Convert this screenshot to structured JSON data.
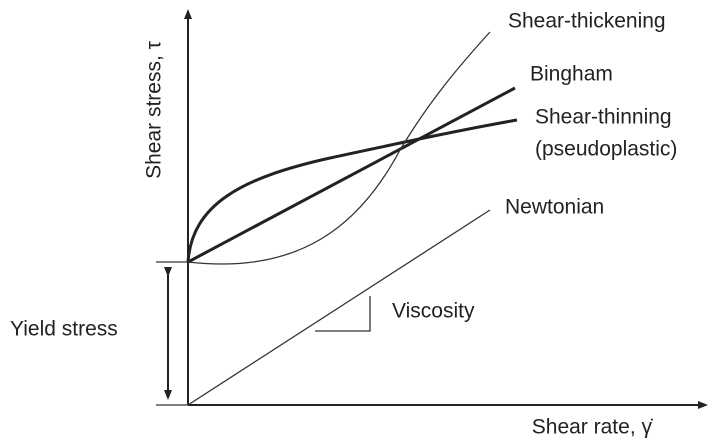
{
  "labels": {
    "y_axis": "Shear stress, τ",
    "x_axis": "Shear rate, γ̇",
    "yield_stress": "Yield stress",
    "viscosity": "Viscosity",
    "curves": [
      "Shear-thickening",
      "Bingham",
      "Shear-thinning",
      "(pseudoplastic)",
      "Newtonian"
    ]
  }
}
